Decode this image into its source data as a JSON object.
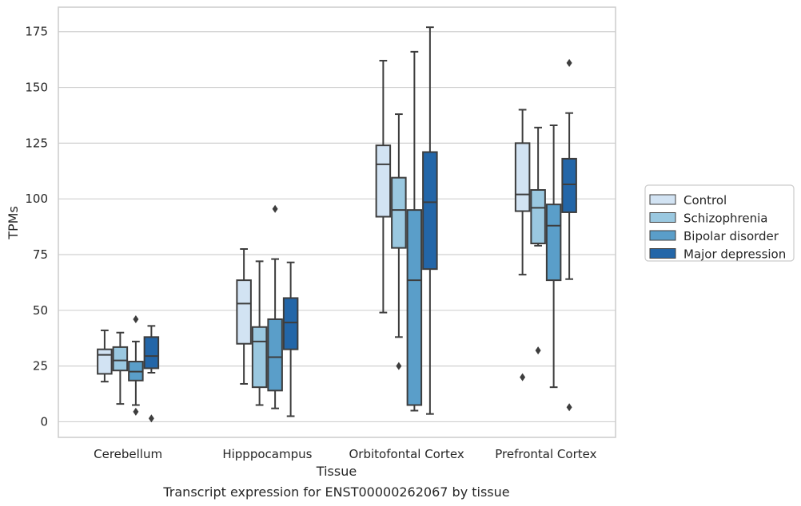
{
  "caption": "Transcript expression for ENST00000262067 by tissue",
  "chart_data": {
    "type": "box",
    "title": "",
    "xlabel": "Tissue",
    "ylabel": "TPMs",
    "ylim": [
      -7,
      186
    ],
    "yticks": [
      0,
      25,
      50,
      75,
      100,
      125,
      150,
      175
    ],
    "grid": "horizontal",
    "legend_position": "right",
    "categories": [
      "Cerebellum",
      "Hipppocampus",
      "Orbitofontal Cortex",
      "Prefrontal Cortex"
    ],
    "series": [
      {
        "name": "Control",
        "color": "#d2e3f3",
        "boxes": [
          {
            "whisker_low": 18,
            "q1": 21.5,
            "median": 30,
            "q3": 32.5,
            "whisker_high": 41,
            "outliers": []
          },
          {
            "whisker_low": 17,
            "q1": 35,
            "median": 53,
            "q3": 63.5,
            "whisker_high": 77.5,
            "outliers": []
          },
          {
            "whisker_low": 49,
            "q1": 92,
            "median": 115.5,
            "q3": 124,
            "whisker_high": 162,
            "outliers": []
          },
          {
            "whisker_low": 66,
            "q1": 94.5,
            "median": 102,
            "q3": 125,
            "whisker_high": 140,
            "outliers": [
              20
            ]
          }
        ]
      },
      {
        "name": "Schizophrenia",
        "color": "#9ac8e0",
        "boxes": [
          {
            "whisker_low": 8,
            "q1": 23,
            "median": 27.5,
            "q3": 33.5,
            "whisker_high": 40,
            "outliers": []
          },
          {
            "whisker_low": 7.5,
            "q1": 15.5,
            "median": 36,
            "q3": 42.5,
            "whisker_high": 72,
            "outliers": []
          },
          {
            "whisker_low": 38,
            "q1": 78,
            "median": 95,
            "q3": 109.5,
            "whisker_high": 138,
            "outliers": [
              25
            ]
          },
          {
            "whisker_low": 79,
            "q1": 80,
            "median": 96,
            "q3": 104,
            "whisker_high": 132,
            "outliers": [
              32
            ]
          }
        ]
      },
      {
        "name": "Bipolar disorder",
        "color": "#5a9ec9",
        "boxes": [
          {
            "whisker_low": 7.5,
            "q1": 18.5,
            "median": 22.5,
            "q3": 27,
            "whisker_high": 36,
            "outliers": [
              46,
              4.5
            ]
          },
          {
            "whisker_low": 6,
            "q1": 14,
            "median": 29,
            "q3": 46,
            "whisker_high": 73,
            "outliers": [
              95.5
            ]
          },
          {
            "whisker_low": 5,
            "q1": 7.5,
            "median": 63.5,
            "q3": 95,
            "whisker_high": 166,
            "outliers": []
          },
          {
            "whisker_low": 15.5,
            "q1": 63.5,
            "median": 88,
            "q3": 97.5,
            "whisker_high": 133,
            "outliers": []
          }
        ]
      },
      {
        "name": "Major depression",
        "color": "#2366a8",
        "boxes": [
          {
            "whisker_low": 22,
            "q1": 24,
            "median": 29.5,
            "q3": 38,
            "whisker_high": 43,
            "outliers": [
              1.5
            ]
          },
          {
            "whisker_low": 2.5,
            "q1": 32.5,
            "median": 44.5,
            "q3": 55.5,
            "whisker_high": 71.5,
            "outliers": []
          },
          {
            "whisker_low": 3.5,
            "q1": 68.5,
            "median": 98.5,
            "q3": 121,
            "whisker_high": 177,
            "outliers": []
          },
          {
            "whisker_low": 64,
            "q1": 94,
            "median": 106.5,
            "q3": 118,
            "whisker_high": 138.5,
            "outliers": [
              161,
              6.5
            ]
          }
        ]
      }
    ]
  }
}
